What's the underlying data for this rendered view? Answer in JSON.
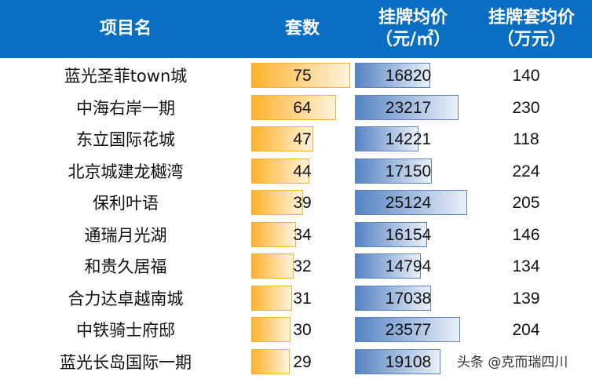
{
  "header": {
    "col_name": "项目名",
    "col_count": "套数",
    "col_price_line1": "挂牌均价",
    "col_price_line2": "（元/㎡）",
    "col_total_line1": "挂牌套均价",
    "col_total_line2": "（万元）"
  },
  "colors": {
    "header_bg": "#0a6fc2",
    "count_bar": "#fdb22b",
    "price_bar": "#5583c3"
  },
  "rows": [
    {
      "name": "蓝光圣菲town城",
      "count": "75",
      "price": "16820",
      "total": "140"
    },
    {
      "name": "中海右岸一期",
      "count": "64",
      "price": "23217",
      "total": "230"
    },
    {
      "name": "东立国际花城",
      "count": "47",
      "price": "14221",
      "total": "118"
    },
    {
      "name": "北京城建龙樾湾",
      "count": "44",
      "price": "17150",
      "total": "224"
    },
    {
      "name": "保利叶语",
      "count": "39",
      "price": "25124",
      "total": "205"
    },
    {
      "name": "通瑞月光湖",
      "count": "34",
      "price": "16154",
      "total": "146"
    },
    {
      "name": "和贵久居福",
      "count": "32",
      "price": "14794",
      "total": "134"
    },
    {
      "name": "合力达卓越南城",
      "count": "31",
      "price": "17038",
      "total": "139"
    },
    {
      "name": "中铁骑士府邸",
      "count": "30",
      "price": "23577",
      "total": "204"
    },
    {
      "name": "蓝光长岛国际一期",
      "count": "29",
      "price": "19108",
      "total": ""
    }
  ],
  "watermark": "头条 @克而瑞四川",
  "chart_data": {
    "type": "table",
    "title": "",
    "columns": [
      "项目名",
      "套数",
      "挂牌均价（元/㎡）",
      "挂牌套均价（万元）"
    ],
    "categories": [
      "蓝光圣菲town城",
      "中海右岸一期",
      "东立国际花城",
      "北京城建龙樾湾",
      "保利叶语",
      "通瑞月光湖",
      "和贵久居福",
      "合力达卓越南城",
      "中铁骑士府邸",
      "蓝光长岛国际一期"
    ],
    "series": [
      {
        "name": "套数",
        "values": [
          75,
          64,
          47,
          44,
          39,
          34,
          32,
          31,
          30,
          29
        ],
        "style": "data-bar",
        "color": "#fdb22b"
      },
      {
        "name": "挂牌均价（元/㎡）",
        "values": [
          16820,
          23217,
          14221,
          17150,
          25124,
          16154,
          14794,
          17038,
          23577,
          19108
        ],
        "style": "data-bar",
        "color": "#5583c3"
      },
      {
        "name": "挂牌套均价（万元）",
        "values": [
          140,
          230,
          118,
          224,
          205,
          146,
          134,
          139,
          204,
          null
        ]
      }
    ]
  }
}
